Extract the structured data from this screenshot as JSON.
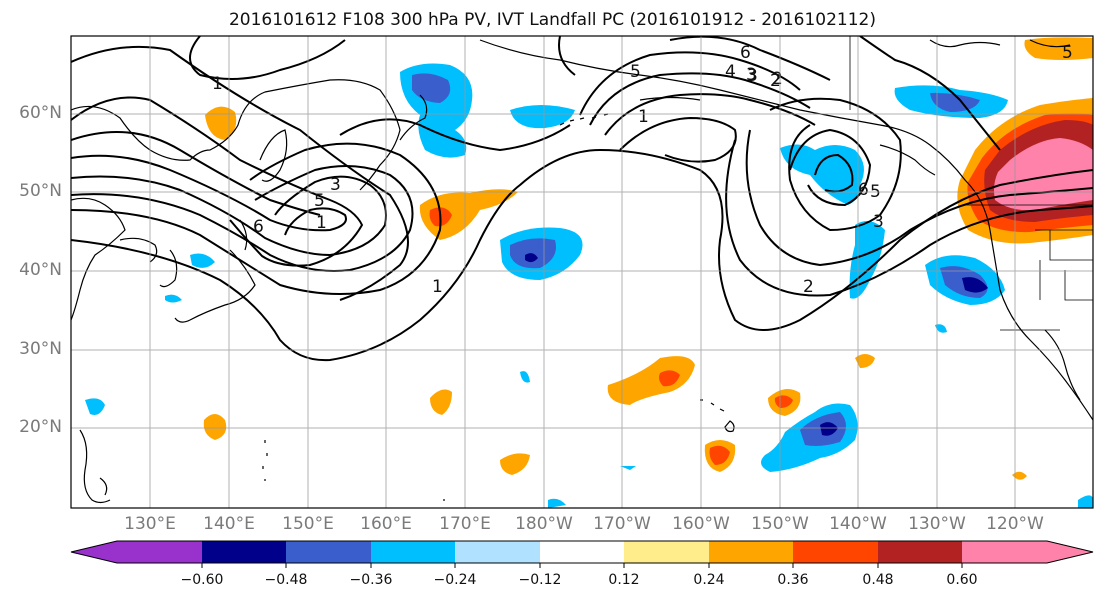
{
  "title": "2016101612 F108 300 hPa PV, IVT Landfall PC (2016101912 - 2016102112)",
  "lat_labels": [
    "60°N",
    "50°N",
    "40°N",
    "30°N",
    "20°N"
  ],
  "lon_labels": [
    "130°E",
    "140°E",
    "150°E",
    "160°E",
    "170°E",
    "180°W",
    "170°W",
    "160°W",
    "150°W",
    "140°W",
    "130°W",
    "120°W"
  ],
  "contour_labels": [
    "1",
    "6",
    "5",
    "4",
    "3",
    "2",
    "5",
    "3",
    "6",
    "5",
    "1",
    "1",
    "6",
    "5",
    "3",
    "2",
    "1",
    "3",
    "2"
  ],
  "colorbar": {
    "ticks": [
      "−0.60",
      "−0.48",
      "−0.36",
      "−0.24",
      "−0.12",
      "0.12",
      "0.24",
      "0.36",
      "0.48",
      "0.60"
    ],
    "colors": [
      "#9932cc",
      "#00008b",
      "#3a5fcd",
      "#00bfff",
      "#b0e2ff",
      "#ffffff",
      "#ffec8b",
      "#ffa500",
      "#ff4500",
      "#b22222",
      "#ff82ab"
    ]
  }
}
